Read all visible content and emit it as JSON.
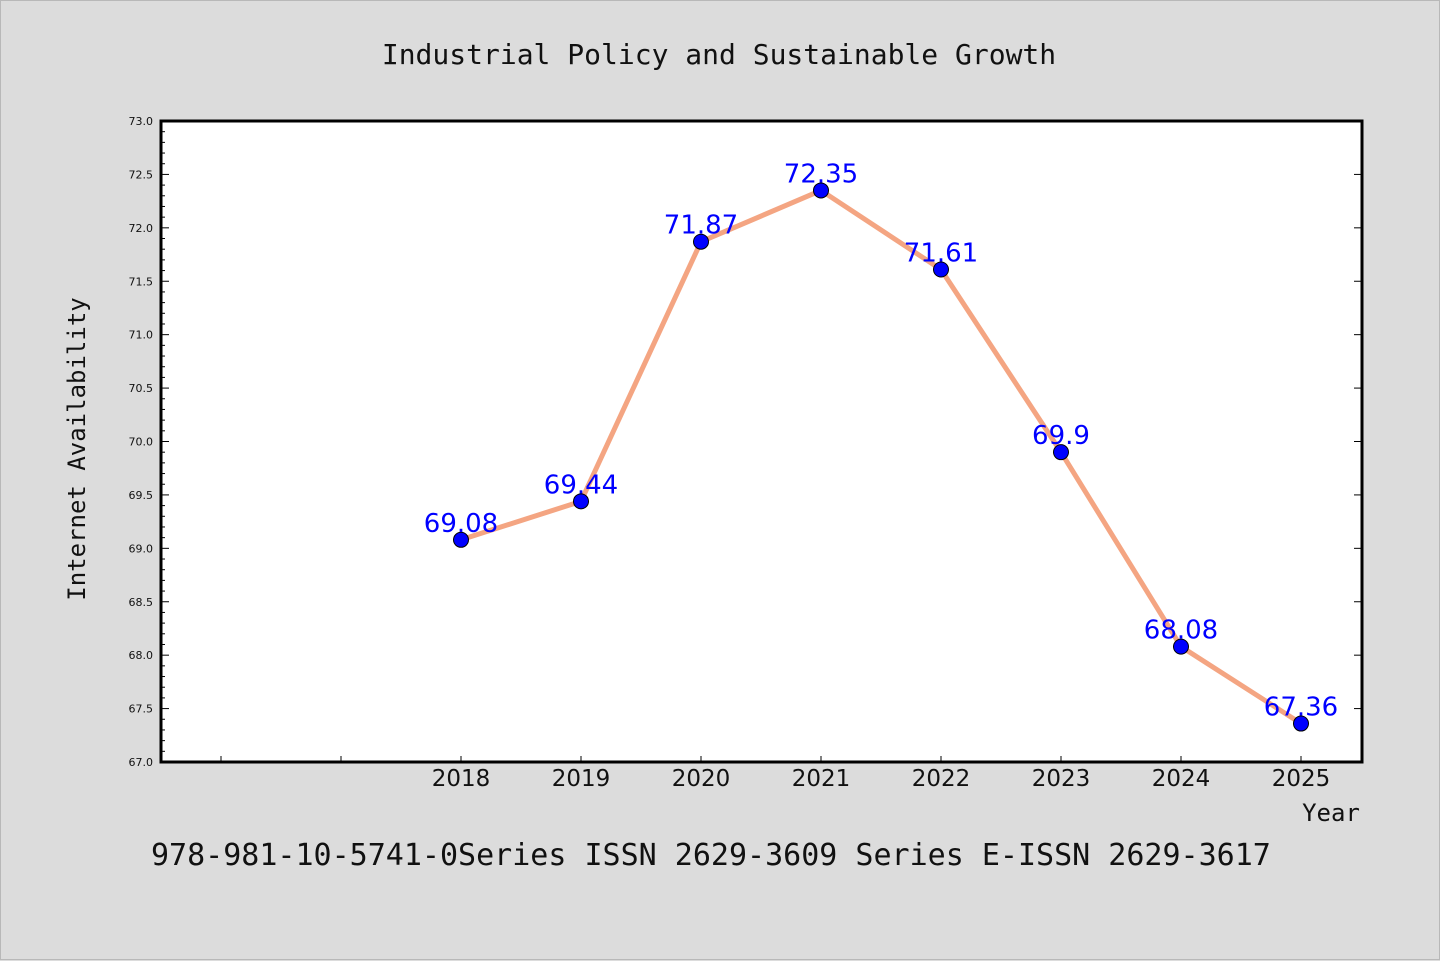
{
  "chart_data": {
    "type": "line",
    "title": "Industrial Policy and Sustainable Growth",
    "xlabel": "Year",
    "ylabel": "Internet Availability",
    "categories": [
      "2018",
      "2019",
      "2020",
      "2021",
      "2022",
      "2023",
      "2024",
      "2025"
    ],
    "series": [
      {
        "values": [
          69.08,
          69.44,
          71.87,
          72.35,
          71.61,
          69.9,
          68.08,
          67.36
        ]
      }
    ],
    "data_labels": [
      "69.08",
      "69.44",
      "71.87",
      "72.35",
      "71.61",
      "69.9",
      "68.08",
      "67.36"
    ],
    "ylim": [
      67.0,
      73.0
    ],
    "yticks": [
      "67.0",
      "67.5",
      "68.0",
      "68.5",
      "69.0",
      "69.5",
      "70.0",
      "70.5",
      "71.0",
      "71.5",
      "72.0",
      "72.5",
      "73.0"
    ],
    "grid": false,
    "line_color": "#f4a582",
    "marker_color": "#0000ff",
    "label_color": "#0000ff"
  },
  "footer": "978-981-10-5741-0Series ISSN 2629-3609 Series E-ISSN 2629-3617"
}
